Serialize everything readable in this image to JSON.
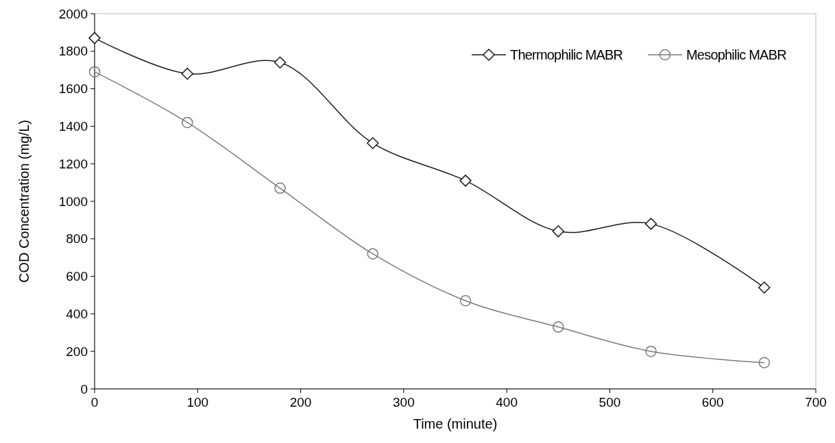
{
  "chart_data": {
    "type": "line",
    "xlabel": "Time (minute)",
    "ylabel": "COD Concentration (mg/L)",
    "x": [
      0,
      90,
      180,
      270,
      360,
      450,
      540,
      650
    ],
    "series": [
      {
        "name": "Thermophilic MABR",
        "color": "#1a1a1a",
        "marker": "diamond",
        "values": [
          1870,
          1680,
          1740,
          1310,
          1110,
          840,
          880,
          540
        ]
      },
      {
        "name": "Mesophilic MABR",
        "color": "#7a7a7a",
        "marker": "circle",
        "values": [
          1690,
          1420,
          1070,
          720,
          470,
          330,
          200,
          140
        ]
      }
    ],
    "xlim": [
      0,
      700
    ],
    "xticks": [
      0,
      100,
      200,
      300,
      400,
      500,
      600,
      700
    ],
    "ylim": [
      0,
      2000
    ],
    "yticks": [
      0,
      200,
      400,
      600,
      800,
      1000,
      1200,
      1400,
      1600,
      1800,
      2000
    ],
    "legend": "top right",
    "grid": false,
    "line_style": "solid"
  }
}
